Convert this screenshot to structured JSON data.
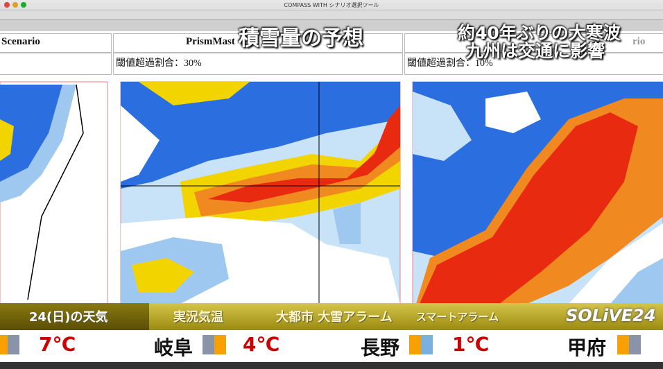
{
  "window": {
    "title": "COMPASS WITH シナリオ選択ツール"
  },
  "panels": [
    {
      "header": "Scenario"
    },
    {
      "header": "PrismMast",
      "threshold": "閾値超過割合：30%"
    },
    {
      "header": "rio",
      "threshold": "閾値超過割合：10%"
    }
  ],
  "overlay": {
    "title": "積雪量の予想"
  },
  "headline": {
    "line1": "約40年ぶりの大寒波",
    "line2": "九州は交通に影響"
  },
  "ticker": {
    "tabs": [
      "24(日)の天気",
      "実況気温",
      "大都市 大雪アラーム",
      "スマートアラーム"
    ],
    "logo": "SOLiVE24"
  },
  "weather": [
    {
      "temp": "7℃"
    },
    {
      "city": "岐阜",
      "temp": "4℃"
    },
    {
      "city": "長野",
      "temp": "1℃"
    },
    {
      "city": "甲府"
    }
  ]
}
